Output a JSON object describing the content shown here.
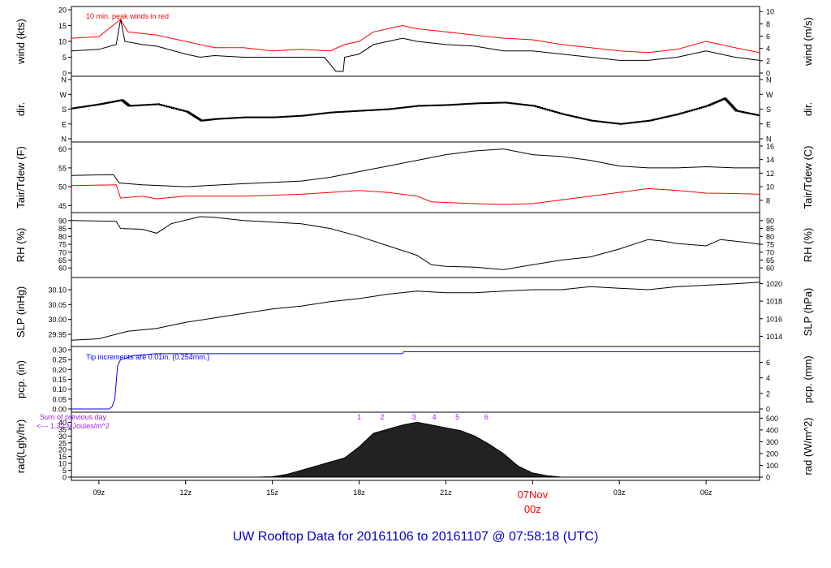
{
  "title": "UW Rooftop Data for 20161106  to  20161107 @ 07:58:18  (UTC)",
  "colors": {
    "red": "#ff0000",
    "blue": "#0000ff",
    "purple": "#a020f0",
    "title": "#0000cc",
    "axis": "#000000"
  },
  "time_axis": {
    "tick_hours": [
      9,
      12,
      15,
      18,
      21,
      24,
      27,
      30
    ],
    "tick_labels": [
      "09z",
      "12z",
      "15z",
      "18z",
      "21z",
      "00z",
      "03z",
      "06z"
    ],
    "date_label": "07Nov",
    "date_time_label": "00z",
    "date_label_hour": 24,
    "xlim_hours": [
      8.05,
      31.85
    ]
  },
  "chart_data": [
    {
      "type": "line",
      "ylabel_left": "wind (kts)",
      "ylabel_right": "wind (m/s)",
      "ylim": [
        0,
        20
      ],
      "yticks": [
        0,
        5,
        10,
        15,
        20
      ],
      "yticks_right": [
        0,
        2,
        4,
        6,
        8,
        10
      ],
      "right_factor": 1.9438,
      "annotation": "10 min. peak winds in red",
      "series": [
        {
          "values": [
            [
              8.05,
              7
            ],
            [
              9,
              7.5
            ],
            [
              9.6,
              9
            ],
            [
              9.75,
              17
            ],
            [
              9.9,
              10
            ],
            [
              10.5,
              9
            ],
            [
              11,
              8.5
            ],
            [
              12,
              6
            ],
            [
              12.5,
              5
            ],
            [
              13,
              5.5
            ],
            [
              14,
              5
            ],
            [
              15,
              5
            ],
            [
              16,
              5
            ],
            [
              16.8,
              5
            ],
            [
              17.2,
              0.5
            ],
            [
              17.45,
              0.5
            ],
            [
              17.5,
              5
            ],
            [
              18,
              6
            ],
            [
              18.5,
              9
            ],
            [
              19,
              10
            ],
            [
              19.5,
              11
            ],
            [
              20,
              10
            ],
            [
              21,
              9
            ],
            [
              22,
              8.5
            ],
            [
              23,
              7
            ],
            [
              24,
              7
            ],
            [
              25,
              6
            ],
            [
              26,
              5
            ],
            [
              27,
              4
            ],
            [
              28,
              4
            ],
            [
              29,
              5
            ],
            [
              30,
              7
            ],
            [
              31,
              5
            ],
            [
              31.85,
              4
            ]
          ]
        },
        {
          "values": [
            [
              8.05,
              11
            ],
            [
              9,
              11.5
            ],
            [
              9.75,
              17
            ],
            [
              10,
              13
            ],
            [
              11,
              12
            ],
            [
              12,
              10
            ],
            [
              13,
              8
            ],
            [
              14,
              8
            ],
            [
              15,
              7
            ],
            [
              16,
              7.5
            ],
            [
              17,
              7
            ],
            [
              17.5,
              9
            ],
            [
              18,
              10
            ],
            [
              18.5,
              13
            ],
            [
              19,
              14
            ],
            [
              19.5,
              15
            ],
            [
              20,
              14
            ],
            [
              21,
              13
            ],
            [
              22,
              12
            ],
            [
              23,
              11
            ],
            [
              24,
              10.5
            ],
            [
              25,
              9
            ],
            [
              26,
              8
            ],
            [
              27,
              7
            ],
            [
              28,
              6.5
            ],
            [
              29,
              7.5
            ],
            [
              30,
              10
            ],
            [
              31,
              8
            ],
            [
              31.85,
              6.5
            ]
          ]
        }
      ]
    },
    {
      "type": "scatter",
      "ylabel_left": "dir.",
      "ylabel_right": "dir.",
      "ylim": [
        0,
        360
      ],
      "yticks": [
        0,
        90,
        180,
        270,
        360
      ],
      "ytick_labels": [
        "N",
        "E",
        "S",
        "W",
        "N"
      ],
      "series": [
        {
          "values": [
            [
              8.05,
              185
            ],
            [
              9,
              210
            ],
            [
              9.75,
              235
            ],
            [
              10,
              200
            ],
            [
              11,
              210
            ],
            [
              12,
              165
            ],
            [
              12.5,
              110
            ],
            [
              13,
              120
            ],
            [
              14,
              130
            ],
            [
              15,
              130
            ],
            [
              16,
              140
            ],
            [
              17,
              160
            ],
            [
              18,
              170
            ],
            [
              19,
              180
            ],
            [
              20,
              200
            ],
            [
              21,
              205
            ],
            [
              22,
              215
            ],
            [
              23,
              220
            ],
            [
              24,
              200
            ],
            [
              25,
              150
            ],
            [
              26,
              110
            ],
            [
              27,
              90
            ],
            [
              28,
              110
            ],
            [
              29,
              150
            ],
            [
              30,
              200
            ],
            [
              30.6,
              245
            ],
            [
              31,
              170
            ],
            [
              31.85,
              140
            ]
          ]
        }
      ]
    },
    {
      "type": "line",
      "ylabel_left": "Tair/Tdew (F)",
      "ylabel_right": "Tair/Tdew (C)",
      "ylim": [
        44,
        61
      ],
      "yticks": [
        45,
        50,
        55,
        60
      ],
      "yticks_right": [
        8,
        10,
        12,
        14,
        16
      ],
      "right_is_celsius": true,
      "series": [
        {
          "values": [
            [
              8.05,
              53
            ],
            [
              9.5,
              53.2
            ],
            [
              9.7,
              51
            ],
            [
              10.5,
              50.5
            ],
            [
              12,
              50
            ],
            [
              14,
              50.8
            ],
            [
              16,
              51.5
            ],
            [
              17,
              52.5
            ],
            [
              18,
              54
            ],
            [
              19,
              55.5
            ],
            [
              20,
              57
            ],
            [
              21,
              58.5
            ],
            [
              22,
              59.5
            ],
            [
              23,
              60
            ],
            [
              24,
              58.5
            ],
            [
              25,
              58
            ],
            [
              26,
              57
            ],
            [
              27,
              55.5
            ],
            [
              28,
              55
            ],
            [
              29,
              55
            ],
            [
              30,
              55.3
            ],
            [
              31,
              55
            ],
            [
              31.85,
              55
            ]
          ]
        },
        {
          "values": [
            [
              8.05,
              50.3
            ],
            [
              9.6,
              50.5
            ],
            [
              9.75,
              47
            ],
            [
              10.5,
              47.5
            ],
            [
              11,
              46.8
            ],
            [
              12,
              47.5
            ],
            [
              14,
              47.5
            ],
            [
              16,
              48
            ],
            [
              17,
              48.5
            ],
            [
              18,
              49
            ],
            [
              19,
              48.5
            ],
            [
              20,
              47.5
            ],
            [
              20.5,
              46
            ],
            [
              22,
              45.5
            ],
            [
              23,
              45.3
            ],
            [
              24,
              45.5
            ],
            [
              25,
              46.5
            ],
            [
              26,
              47.5
            ],
            [
              27,
              48.5
            ],
            [
              28,
              49.5
            ],
            [
              29,
              49
            ],
            [
              30,
              48.3
            ],
            [
              31,
              48.2
            ],
            [
              31.85,
              48
            ]
          ]
        }
      ]
    },
    {
      "type": "line",
      "ylabel_left": "RH (%)",
      "ylabel_right": "RH (%)",
      "ylim": [
        56,
        93
      ],
      "yticks": [
        60,
        65,
        70,
        75,
        80,
        85,
        90
      ],
      "series": [
        {
          "values": [
            [
              8.05,
              90
            ],
            [
              9.6,
              89.5
            ],
            [
              9.75,
              85
            ],
            [
              10.5,
              84.5
            ],
            [
              11,
              82
            ],
            [
              11.5,
              88
            ],
            [
              12.5,
              92.5
            ],
            [
              13,
              92
            ],
            [
              14,
              90
            ],
            [
              16,
              88
            ],
            [
              17,
              85
            ],
            [
              18,
              80
            ],
            [
              19,
              74
            ],
            [
              20,
              68
            ],
            [
              20.5,
              62
            ],
            [
              21,
              61
            ],
            [
              22,
              60.5
            ],
            [
              23,
              59
            ],
            [
              24,
              62
            ],
            [
              25,
              65
            ],
            [
              26,
              67
            ],
            [
              27,
              72
            ],
            [
              28,
              78
            ],
            [
              28.5,
              77
            ],
            [
              29,
              75.5
            ],
            [
              30,
              74
            ],
            [
              30.5,
              78
            ],
            [
              31.5,
              76
            ],
            [
              31.85,
              75
            ]
          ]
        }
      ]
    },
    {
      "type": "line",
      "ylabel_left": "SLP (inHg)",
      "ylabel_right": "SLP (hPa)",
      "ylim": [
        29.92,
        30.13
      ],
      "yticks": [
        29.95,
        30.0,
        30.05,
        30.1
      ],
      "ytick_labels": [
        "29.95",
        "30.00",
        "30.05",
        "30.10"
      ],
      "yticks_right": [
        1014,
        1016,
        1018,
        1020
      ],
      "right_factor_hpa": 33.8639,
      "series": [
        {
          "values": [
            [
              8.05,
              29.93
            ],
            [
              9,
              29.935
            ],
            [
              10,
              29.96
            ],
            [
              11,
              29.97
            ],
            [
              12,
              29.99
            ],
            [
              13,
              30.005
            ],
            [
              14,
              30.02
            ],
            [
              15,
              30.035
            ],
            [
              16,
              30.045
            ],
            [
              17,
              30.06
            ],
            [
              18,
              30.07
            ],
            [
              19,
              30.085
            ],
            [
              20,
              30.095
            ],
            [
              21,
              30.09
            ],
            [
              22,
              30.09
            ],
            [
              23,
              30.095
            ],
            [
              24,
              30.1
            ],
            [
              25,
              30.1
            ],
            [
              26,
              30.11
            ],
            [
              27,
              30.105
            ],
            [
              28,
              30.1
            ],
            [
              29,
              30.11
            ],
            [
              30,
              30.115
            ],
            [
              31,
              30.12
            ],
            [
              31.85,
              30.125
            ]
          ]
        }
      ]
    },
    {
      "type": "line",
      "ylabel_left": "pcp. (in)",
      "ylabel_right": "pcp. (mm)",
      "ylim": [
        0,
        0.3
      ],
      "yticks": [
        0,
        0.05,
        0.1,
        0.15,
        0.2,
        0.25,
        0.3
      ],
      "ytick_labels": [
        "0.00",
        "0.05",
        "0.10",
        "0.15",
        "0.20",
        "0.25",
        "0.30"
      ],
      "yticks_right": [
        0,
        2,
        4,
        6
      ],
      "right_factor_mm": 25.4,
      "annotation": "Tip increments are 0.01in. (0.254mm.)",
      "series": [
        {
          "values": [
            [
              8.05,
              0
            ],
            [
              9.35,
              0
            ],
            [
              9.45,
              0.01
            ],
            [
              9.55,
              0.05
            ],
            [
              9.65,
              0.22
            ],
            [
              9.75,
              0.25
            ],
            [
              10,
              0.26
            ],
            [
              10.2,
              0.27
            ],
            [
              11,
              0.28
            ],
            [
              15,
              0.28
            ],
            [
              19.5,
              0.28
            ],
            [
              19.55,
              0.29
            ],
            [
              31.85,
              0.29
            ]
          ]
        }
      ]
    },
    {
      "type": "area",
      "ylabel_left": "rad(Lgly/hr)",
      "ylabel_right": "rad (W/m^2)",
      "ylim": [
        0,
        45
      ],
      "yticks": [
        0,
        5,
        10,
        15,
        20,
        25,
        30,
        35,
        40
      ],
      "yticks_right": [
        0,
        100,
        200,
        300,
        400,
        500
      ],
      "right_factor_wm2": 11.622,
      "annotation_line1": "Sum of previous day",
      "annotation_line2": "<--- 1.32 MJoules/m^2",
      "hour_markers": [
        "1",
        "2",
        "3",
        "4",
        "5",
        "6"
      ],
      "hour_marker_x": [
        18,
        18.8,
        19.9,
        20.6,
        21.4,
        22.4
      ],
      "series": [
        {
          "values": [
            [
              8.05,
              0
            ],
            [
              14.5,
              0
            ],
            [
              15,
              0.3
            ],
            [
              15.5,
              2
            ],
            [
              16,
              5
            ],
            [
              16.5,
              8
            ],
            [
              17,
              11
            ],
            [
              17.5,
              14
            ],
            [
              18,
              22
            ],
            [
              18.5,
              32
            ],
            [
              19,
              35
            ],
            [
              19.5,
              38
            ],
            [
              20,
              40
            ],
            [
              20.5,
              38
            ],
            [
              21,
              36
            ],
            [
              21.5,
              34
            ],
            [
              22,
              30
            ],
            [
              22.5,
              24
            ],
            [
              23,
              17
            ],
            [
              23.5,
              8
            ],
            [
              24,
              3
            ],
            [
              24.5,
              1
            ],
            [
              25,
              0
            ],
            [
              31.85,
              0
            ]
          ]
        }
      ]
    }
  ]
}
